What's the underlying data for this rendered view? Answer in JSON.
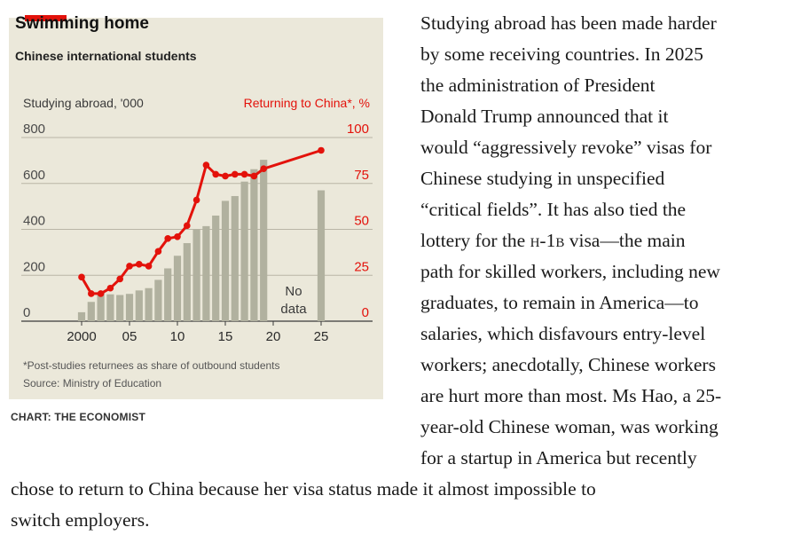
{
  "chart_data": {
    "type": "bar+line",
    "title": "Swimming home",
    "subtitle": "Chinese international students",
    "left_axis_label": "Studying abroad, '000",
    "right_axis_label": "Returning to China*, %",
    "left_ticks": [
      "800",
      "600",
      "400",
      "200",
      "0"
    ],
    "right_ticks": [
      "100",
      "75",
      "50",
      "25",
      "0"
    ],
    "left_ylim": [
      0,
      800
    ],
    "right_ylim": [
      0,
      100
    ],
    "x_tick_labels": [
      {
        "year": 2000,
        "label": "2000"
      },
      {
        "year": 2005,
        "label": "05"
      },
      {
        "year": 2010,
        "label": "10"
      },
      {
        "year": 2015,
        "label": "15"
      },
      {
        "year": 2020,
        "label": "20"
      },
      {
        "year": 2025,
        "label": "25"
      }
    ],
    "gridlines": true,
    "bars": {
      "name": "Studying abroad, '000",
      "color": "#b1b19f",
      "years": [
        2000,
        2001,
        2002,
        2003,
        2004,
        2005,
        2006,
        2007,
        2008,
        2009,
        2010,
        2011,
        2012,
        2013,
        2014,
        2015,
        2016,
        2017,
        2018,
        2019,
        2025
      ],
      "values": [
        39,
        84,
        125,
        117,
        114,
        119,
        134,
        144,
        180,
        230,
        285,
        340,
        400,
        414,
        460,
        524,
        545,
        608,
        662,
        703,
        570
      ]
    },
    "line": {
      "name": "Returning to China*, %",
      "color": "#e3120b",
      "years": [
        2000,
        2001,
        2002,
        2003,
        2004,
        2005,
        2006,
        2007,
        2008,
        2009,
        2010,
        2011,
        2012,
        2013,
        2014,
        2015,
        2016,
        2017,
        2018,
        2019,
        2025
      ],
      "values": [
        24,
        15,
        15,
        18,
        23,
        30,
        31,
        30,
        38,
        45,
        46,
        52,
        66,
        85,
        80,
        79,
        80,
        80,
        79,
        83,
        93
      ]
    },
    "no_data_label": [
      "No",
      "data"
    ],
    "footnote": "*Post-studies returnees as share of outbound students",
    "source": "Source: Ministry of Education"
  },
  "credit": "CHART: THE ECONOMIST",
  "colors": {
    "panel_bg": "#ebe8da",
    "accent_red": "#e3120b",
    "bar_grey": "#b1b19f",
    "grid": "#b9b5a6"
  },
  "article": {
    "right_column": [
      "Studying abroad has been made harder",
      "by some receiving countries. In 2025",
      "the administration of President",
      "Donald Trump announced that it",
      "would “aggressively revoke” visas for",
      "Chinese studying in unspecified",
      "“critical fields”. It has also tied the",
      [
        "lottery for the ",
        "h-1b",
        " visa—the main"
      ],
      "path for skilled workers, including new",
      "graduates, to remain in America—to",
      "salaries, which disfavours entry-level",
      "workers; anecdotally, Chinese workers",
      "are hurt more than most. Ms Hao, a 25-",
      "year-old Chinese woman, was working",
      "for a startup in America but recently"
    ],
    "full_width": [
      "chose to return to China because her visa status made it almost impossible to",
      "switch employers."
    ]
  }
}
